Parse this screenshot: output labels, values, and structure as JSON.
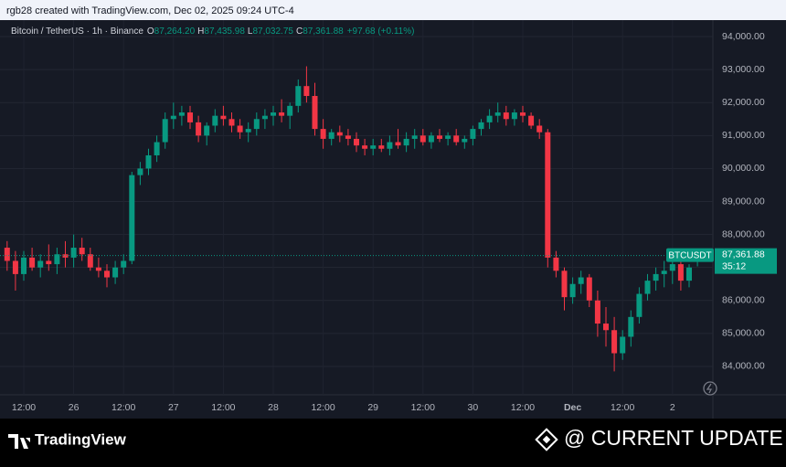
{
  "header": {
    "caption": "rgb28 created with TradingView.com, Dec 02, 2025 09:24 UTC-4"
  },
  "chart_data": {
    "type": "candlestick",
    "symbol": "Bitcoin / TetherUS · 1h · Binance",
    "ohlc_legend": [
      {
        "key": "O",
        "text": "87,264.20"
      },
      {
        "key": "H",
        "text": "87,435.98"
      },
      {
        "key": "L",
        "text": "87,032.75"
      },
      {
        "key": "C",
        "text": "87,361.88"
      }
    ],
    "change": "+97.68 (+0.11%)",
    "last_price": {
      "ticker": "BTCUSDT",
      "price": "87,361.88",
      "countdown": "35:12"
    },
    "up_color": "#089981",
    "down_color": "#f23645",
    "grid": true,
    "categories": [
      null,
      null,
      "12:00",
      null,
      null,
      null,
      null,
      null,
      "26",
      null,
      null,
      null,
      null,
      null,
      "12:00",
      null,
      null,
      null,
      null,
      null,
      "27",
      null,
      null,
      null,
      null,
      null,
      "12:00",
      null,
      null,
      null,
      null,
      null,
      "28",
      null,
      null,
      null,
      null,
      null,
      "12:00",
      null,
      null,
      null,
      null,
      null,
      "29",
      null,
      null,
      null,
      null,
      null,
      "12:00",
      null,
      null,
      null,
      null,
      null,
      "30",
      null,
      null,
      null,
      null,
      null,
      "12:00",
      null,
      null,
      null,
      null,
      null,
      "Dec",
      null,
      null,
      null,
      null,
      null,
      "12:00",
      null,
      null,
      null,
      null,
      null,
      "2",
      null,
      null,
      null
    ],
    "open": [
      87600,
      87200,
      86800,
      87300,
      87000,
      87200,
      87100,
      87400,
      87300,
      87600,
      87400,
      87000,
      86900,
      86700,
      87000,
      87200,
      89800,
      90000,
      90400,
      90800,
      91500,
      91600,
      91700,
      91400,
      91000,
      91300,
      91600,
      91500,
      91300,
      91100,
      91200,
      91500,
      91600,
      91700,
      91600,
      91900,
      92500,
      92200,
      91200,
      90900,
      91100,
      91000,
      90900,
      90700,
      90600,
      90700,
      90600,
      90800,
      90700,
      90900,
      91000,
      90800,
      91000,
      90900,
      91000,
      90800,
      90900,
      91200,
      91400,
      91600,
      91700,
      91500,
      91700,
      91600,
      91300,
      91100,
      87300,
      86900,
      86100,
      86500,
      86700,
      86000,
      85300,
      85100,
      84400,
      84900,
      85500,
      86200,
      86600,
      86800,
      86900,
      87100,
      86600,
      87264.2
    ],
    "high": [
      87800,
      87500,
      87500,
      87600,
      87400,
      87700,
      87600,
      87800,
      88000,
      87900,
      87600,
      87300,
      87100,
      87200,
      87400,
      89900,
      90200,
      90600,
      91000,
      91700,
      92000,
      91900,
      91900,
      91600,
      91400,
      91800,
      91900,
      91700,
      91500,
      91400,
      91700,
      91800,
      91900,
      92100,
      92000,
      92700,
      93100,
      92600,
      91500,
      91200,
      91300,
      91200,
      91100,
      90900,
      90900,
      90900,
      91000,
      91200,
      91100,
      91200,
      91200,
      91100,
      91200,
      91100,
      91200,
      91000,
      91300,
      91500,
      91800,
      92000,
      91900,
      91800,
      91900,
      91700,
      91500,
      91200,
      87500,
      87000,
      86700,
      86900,
      86800,
      86300,
      85800,
      85500,
      85100,
      85700,
      86400,
      86800,
      87000,
      87200,
      87300,
      87300,
      87100,
      87435.98
    ],
    "low": [
      86900,
      86300,
      86600,
      86900,
      86700,
      86900,
      86800,
      87000,
      87000,
      87200,
      86900,
      86700,
      86400,
      86500,
      86800,
      87100,
      89500,
      89800,
      90200,
      90600,
      91200,
      91300,
      91200,
      90800,
      90700,
      91100,
      91300,
      91100,
      90900,
      90800,
      91000,
      91200,
      91300,
      91400,
      91200,
      91700,
      92000,
      91000,
      90600,
      90700,
      90800,
      90700,
      90500,
      90400,
      90400,
      90500,
      90400,
      90600,
      90500,
      90600,
      90700,
      90600,
      90800,
      90700,
      90700,
      90600,
      90700,
      91000,
      91200,
      91400,
      91300,
      91300,
      91400,
      91200,
      90900,
      87000,
      86700,
      85700,
      85900,
      86200,
      85800,
      84900,
      84600,
      83850,
      84200,
      84600,
      85300,
      86000,
      86300,
      86400,
      86500,
      86300,
      86400,
      87032.75
    ],
    "close": [
      87200,
      86800,
      87300,
      87000,
      87200,
      87100,
      87400,
      87300,
      87600,
      87400,
      87000,
      86900,
      86700,
      87000,
      87200,
      89800,
      90000,
      90400,
      90800,
      91500,
      91600,
      91700,
      91400,
      91000,
      91300,
      91600,
      91500,
      91300,
      91100,
      91200,
      91500,
      91600,
      91700,
      91600,
      91900,
      92500,
      92200,
      91200,
      90900,
      91100,
      91000,
      90900,
      90700,
      90600,
      90700,
      90600,
      90800,
      90700,
      90900,
      91000,
      90800,
      91000,
      90900,
      91000,
      90800,
      90900,
      91200,
      91400,
      91600,
      91700,
      91500,
      91700,
      91600,
      91300,
      91100,
      87300,
      86900,
      86100,
      86500,
      86700,
      86000,
      85300,
      85100,
      84400,
      84900,
      85500,
      86200,
      86600,
      86800,
      86900,
      87100,
      86600,
      87000,
      87361.88
    ],
    "ylim": [
      83140,
      94500
    ],
    "yticks": [
      {
        "value": 84000,
        "label": "84,000.00"
      },
      {
        "value": 85000,
        "label": "85,000.00"
      },
      {
        "value": 86000,
        "label": "86,000.00"
      },
      {
        "value": 87000,
        "label": "87,000.00"
      },
      {
        "value": 88000,
        "label": "88,000.00"
      },
      {
        "value": 89000,
        "label": "89,000.00"
      },
      {
        "value": 90000,
        "label": "90,000.00"
      },
      {
        "value": 91000,
        "label": "91,000.00"
      },
      {
        "value": 92000,
        "label": "92,000.00"
      },
      {
        "value": 93000,
        "label": "93,000.00"
      },
      {
        "value": 94000,
        "label": "94,000.00"
      }
    ]
  },
  "footer": {
    "brand": "TradingView",
    "watermark": "@ CURRENT UPDATE"
  }
}
